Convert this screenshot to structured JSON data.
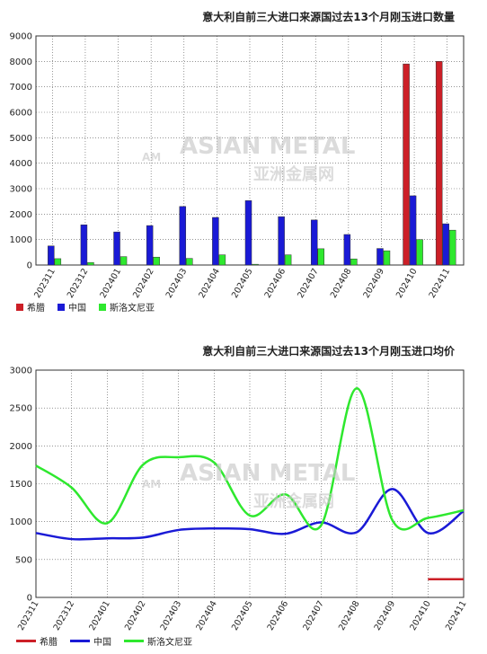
{
  "chart_data": [
    {
      "type": "bar",
      "title": "意大利自前三大进口来源国过去13个月刚玉进口数量",
      "categories": [
        "202311",
        "202312",
        "202401",
        "202402",
        "202403",
        "202404",
        "202405",
        "202406",
        "202407",
        "202408",
        "202409",
        "202410",
        "202411"
      ],
      "series": [
        {
          "name": "希腊",
          "color": "#cc1f27",
          "values": [
            0,
            0,
            0,
            0,
            0,
            0,
            0,
            0,
            0,
            0,
            0,
            7900,
            8000
          ]
        },
        {
          "name": "中国",
          "color": "#1a1ad6",
          "values": [
            750,
            1580,
            1300,
            1550,
            2300,
            1870,
            2530,
            1900,
            1770,
            1200,
            650,
            2720,
            1620
          ]
        },
        {
          "name": "斯洛文尼亚",
          "color": "#2ee82e",
          "values": [
            250,
            100,
            330,
            310,
            260,
            400,
            30,
            400,
            640,
            240,
            560,
            1000,
            1370
          ]
        }
      ],
      "ylim": [
        0,
        9000
      ],
      "yticks": [
        0,
        1000,
        2000,
        3000,
        4000,
        5000,
        6000,
        7000,
        8000,
        9000
      ],
      "grid": true,
      "legend": "bottom-left"
    },
    {
      "type": "line",
      "title": "意大利自前三大进口来源国过去13个月刚玉进口均价",
      "categories": [
        "202311",
        "202312",
        "202401",
        "202402",
        "202403",
        "202404",
        "202405",
        "202406",
        "202407",
        "202408",
        "202409",
        "202410",
        "202411"
      ],
      "series": [
        {
          "name": "希腊",
          "color": "#cc1f27",
          "values": [
            null,
            null,
            null,
            null,
            null,
            null,
            null,
            null,
            null,
            null,
            null,
            240,
            240
          ]
        },
        {
          "name": "中国",
          "color": "#1a1ad6",
          "values": [
            850,
            770,
            780,
            790,
            890,
            910,
            900,
            840,
            990,
            860,
            1430,
            850,
            1140
          ]
        },
        {
          "name": "斯洛文尼亚",
          "color": "#2ee82e",
          "values": [
            1740,
            1450,
            980,
            1750,
            1850,
            1780,
            1080,
            1360,
            950,
            2760,
            1020,
            1050,
            1150
          ]
        }
      ],
      "ylim": [
        0,
        3000
      ],
      "yticks": [
        0,
        500,
        1000,
        1500,
        2000,
        2500,
        3000
      ],
      "grid": true,
      "legend": "bottom-left"
    }
  ],
  "watermark": {
    "en": "ASIAN METAL",
    "cn": "亚洲金属网",
    "logo": "AM"
  }
}
